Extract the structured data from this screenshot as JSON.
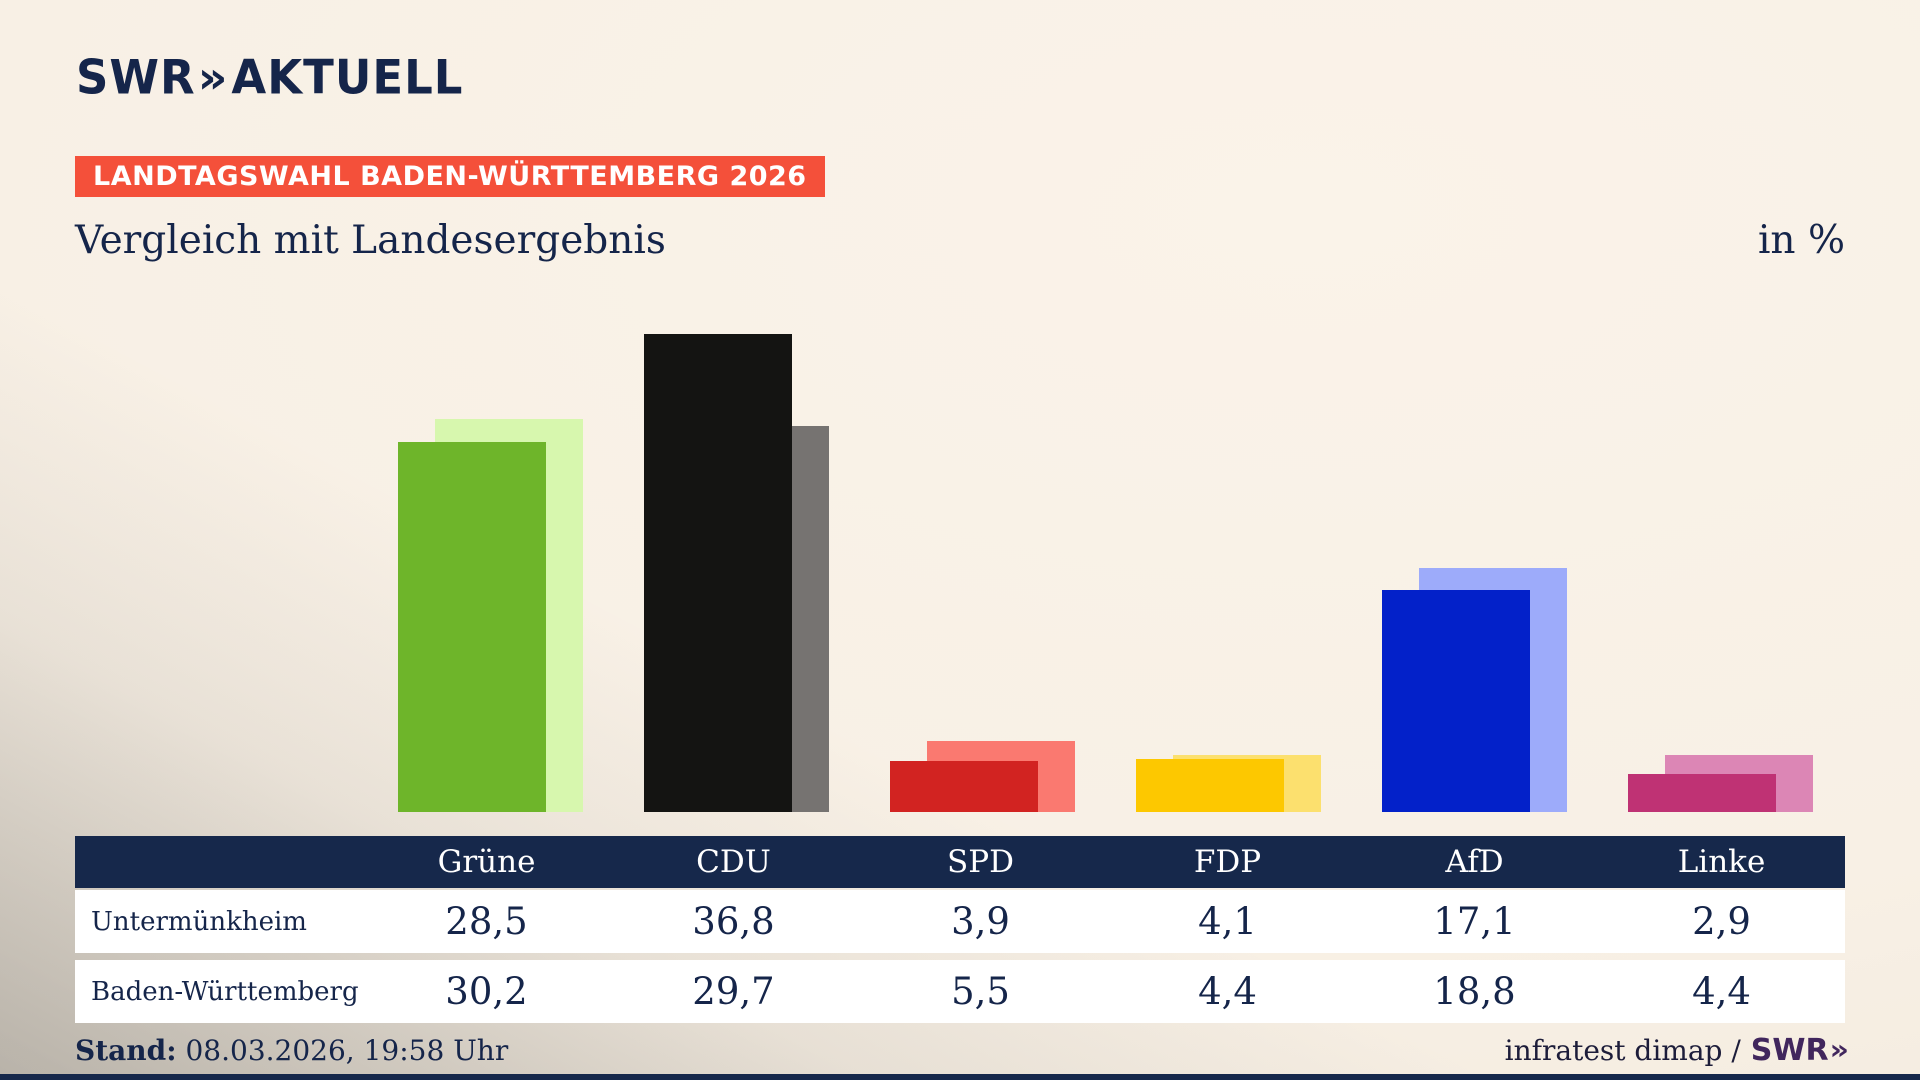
{
  "header": {
    "logo_swr": "SWR",
    "logo_aktuell": "AKTUELL",
    "chevron_icon": "»",
    "badge": "LANDTAGSWAHL BADEN-WÜRTTEMBERG 2026"
  },
  "chart_data": {
    "type": "bar",
    "title": "Vergleich mit Landesergebnis",
    "unit_label": "in %",
    "categories": [
      "Grüne",
      "CDU",
      "SPD",
      "FDP",
      "AfD",
      "Linke"
    ],
    "series": [
      {
        "name": "Untermünkheim",
        "values": [
          28.5,
          36.8,
          3.9,
          4.1,
          17.1,
          2.9
        ],
        "display_values": [
          "28,5",
          "36,8",
          "3,9",
          "4,1",
          "17,1",
          "2,9"
        ],
        "colors": [
          "#6eb52a",
          "#141412",
          "#d22321",
          "#fdc800",
          "#0321c9",
          "#bf3274"
        ]
      },
      {
        "name": "Baden-Württemberg",
        "values": [
          30.2,
          29.7,
          5.5,
          4.4,
          18.8,
          4.4
        ],
        "display_values": [
          "30,2",
          "29,7",
          "5,5",
          "4,4",
          "18,8",
          "4,4"
        ],
        "colors": [
          "#d7f7ae",
          "#767371",
          "#fa7970",
          "#fce06e",
          "#9dabfa",
          "#dc86b5"
        ]
      }
    ],
    "ylim": [
      0,
      40
    ],
    "grid": false,
    "legend_position": "table-below-chart"
  },
  "footer": {
    "stand_label": "Stand:",
    "stand_value": " 08.03.2026, 19:58 Uhr",
    "source": "infratest dimap /",
    "source_logo": "SWR",
    "chevron_icon": "»"
  },
  "colors": {
    "navy": "#16284b",
    "badge_red": "#f4503a",
    "background_cream": "#f7efe4",
    "footer_logo_purple": "#41265d"
  }
}
